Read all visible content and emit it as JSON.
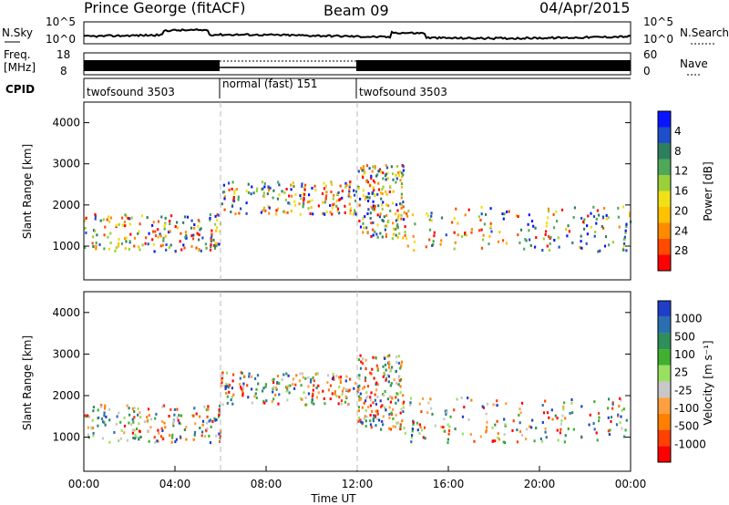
{
  "header": {
    "station": "Prince George (fitACF)",
    "beam": "Beam 09",
    "date": "04/Apr/2015"
  },
  "noise_panel": {
    "left_label": "N.Sky",
    "left_ticks": [
      "10^5",
      "10^0"
    ],
    "right_ticks": [
      "10^5",
      "10^0"
    ],
    "right_label": "N.Search"
  },
  "freq_panel": {
    "left_label_1": "Freq.",
    "left_label_2": "[MHz]",
    "left_ticks": [
      "18",
      "8"
    ],
    "right_ticks": [
      "60",
      "0"
    ],
    "right_label": "Nave"
  },
  "cpid": {
    "label": "CPID",
    "segments": [
      {
        "name": "twofsound 3503",
        "start_hour": 0,
        "end_hour": 6
      },
      {
        "name": "normal (fast) 151",
        "start_hour": 6,
        "end_hour": 12
      },
      {
        "name": "twofsound 3503",
        "start_hour": 12,
        "end_hour": 24
      }
    ]
  },
  "chart_data": [
    {
      "type": "heatmap",
      "panel": "power",
      "xlabel": "",
      "ylabel": "Slant Range [km]",
      "xlim_hours": [
        0,
        24
      ],
      "ylim": [
        180,
        4500
      ],
      "yticks": [
        "1000",
        "2000",
        "3000",
        "4000"
      ],
      "colorbar": {
        "label": "Power [dB]",
        "ticks": [
          "4",
          "8",
          "12",
          "16",
          "20",
          "24",
          "28"
        ],
        "colors": [
          "#0a14ff",
          "#1f4fc8",
          "#2e7f5f",
          "#4fa85a",
          "#9ad03a",
          "#f0e018",
          "#ffc200",
          "#ff8a00",
          "#ff4a00",
          "#ff0000"
        ]
      }
    },
    {
      "type": "heatmap",
      "panel": "velocity",
      "xlabel": "Time UT",
      "ylabel": "Slant Range [km]",
      "xlim_hours": [
        0,
        24
      ],
      "ylim": [
        180,
        4500
      ],
      "yticks": [
        "1000",
        "2000",
        "3000",
        "4000"
      ],
      "xticks": [
        "00:00",
        "04:00",
        "08:00",
        "12:00",
        "16:00",
        "20:00",
        "00:00"
      ],
      "colorbar": {
        "label": "Velocity [m s⁻¹]",
        "ticks": [
          "1000",
          "500",
          "100",
          "25",
          "-25",
          "-100",
          "-500",
          "-1000"
        ],
        "colors": [
          "#1f3fc8",
          "#2a6fb0",
          "#2e8f5a",
          "#40b030",
          "#9ae060",
          "#c8c8c8",
          "#ffa040",
          "#ff8000",
          "#ff4000",
          "#ff0000"
        ]
      }
    }
  ]
}
